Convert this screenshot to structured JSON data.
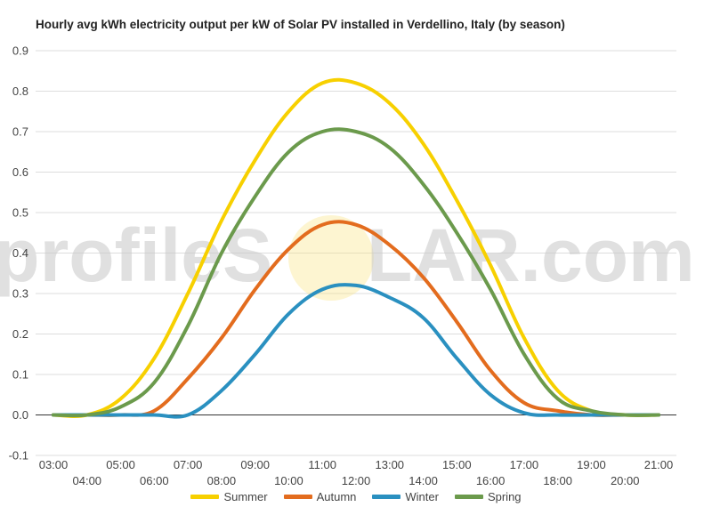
{
  "chart_data": {
    "type": "line",
    "title": "Hourly avg kWh electricity output per kW of Solar PV installed in Verdellino, Italy (by season)",
    "xlabel": "",
    "ylabel": "",
    "ylim": [
      -0.1,
      0.9
    ],
    "yticks": [
      "0.9",
      "0.8",
      "0.7",
      "0.6",
      "0.5",
      "0.4",
      "0.3",
      "0.2",
      "0.1",
      "0.0",
      "-0.1"
    ],
    "ytick_values": [
      0.9,
      0.8,
      0.7,
      0.6,
      0.5,
      0.4,
      0.3,
      0.2,
      0.1,
      0.0,
      -0.1
    ],
    "categories": [
      "03:00",
      "04:00",
      "05:00",
      "06:00",
      "07:00",
      "08:00",
      "09:00",
      "10:00",
      "11:00",
      "12:00",
      "13:00",
      "14:00",
      "15:00",
      "16:00",
      "17:00",
      "18:00",
      "19:00",
      "20:00",
      "21:00"
    ],
    "grid": true,
    "legend_position": "bottom",
    "watermark": {
      "text_left": "profileS",
      "text_right": "LAR.com"
    },
    "series": [
      {
        "name": "Summer",
        "color": "#f7d000",
        "values": [
          0,
          0,
          0.04,
          0.14,
          0.3,
          0.48,
          0.63,
          0.75,
          0.82,
          0.82,
          0.77,
          0.67,
          0.53,
          0.37,
          0.19,
          0.06,
          0.01,
          0,
          0
        ]
      },
      {
        "name": "Autumn",
        "color": "#e36c1e",
        "values": [
          0,
          0,
          0,
          0.01,
          0.09,
          0.19,
          0.31,
          0.41,
          0.47,
          0.47,
          0.42,
          0.34,
          0.23,
          0.11,
          0.03,
          0.01,
          0,
          0,
          0
        ]
      },
      {
        "name": "Winter",
        "color": "#2a90c0",
        "values": [
          0,
          0,
          0,
          0,
          0,
          0.06,
          0.15,
          0.25,
          0.31,
          0.32,
          0.29,
          0.24,
          0.14,
          0.05,
          0.005,
          0,
          0,
          0,
          0
        ]
      },
      {
        "name": "Spring",
        "color": "#6b9a4c",
        "values": [
          0,
          0,
          0.02,
          0.08,
          0.22,
          0.4,
          0.54,
          0.65,
          0.7,
          0.7,
          0.66,
          0.57,
          0.45,
          0.31,
          0.15,
          0.04,
          0.01,
          0,
          0
        ]
      }
    ]
  }
}
